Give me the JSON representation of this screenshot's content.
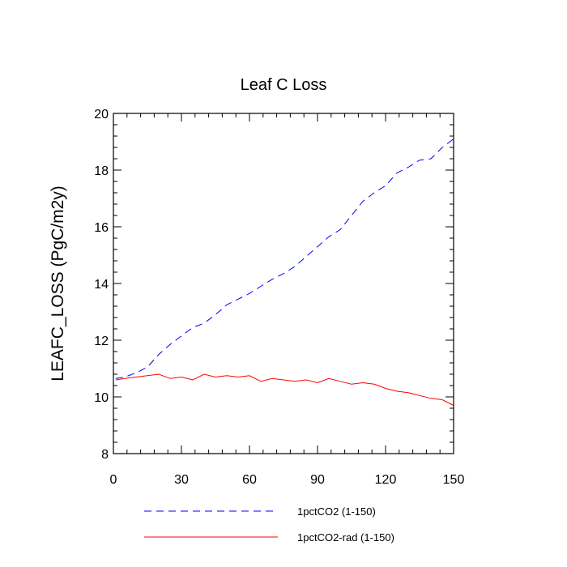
{
  "chart_data": {
    "type": "line",
    "title": "Leaf C Loss",
    "xlabel": "",
    "ylabel": "LEAFC_LOSS  (PgC/m2y)",
    "xlim": [
      0,
      150
    ],
    "ylim": [
      8,
      20
    ],
    "xticks": [
      0,
      30,
      60,
      90,
      120,
      150
    ],
    "yticks": [
      8,
      10,
      12,
      14,
      16,
      18,
      20
    ],
    "grid": false,
    "legend_position": "bottom",
    "series": [
      {
        "name": "1pctCO2 (1-150)",
        "color": "#0000ff",
        "dash": "dashed",
        "x": [
          1,
          5,
          10,
          15,
          20,
          25,
          30,
          35,
          40,
          45,
          50,
          55,
          60,
          65,
          70,
          75,
          80,
          85,
          90,
          95,
          100,
          105,
          110,
          115,
          120,
          125,
          130,
          135,
          140,
          145,
          150
        ],
        "y": [
          10.65,
          10.7,
          10.85,
          11.05,
          11.5,
          11.85,
          12.15,
          12.45,
          12.6,
          12.9,
          13.25,
          13.45,
          13.65,
          13.9,
          14.15,
          14.35,
          14.6,
          14.95,
          15.3,
          15.65,
          15.9,
          16.4,
          16.9,
          17.2,
          17.45,
          17.9,
          18.1,
          18.35,
          18.4,
          18.8,
          19.1
        ]
      },
      {
        "name": "1pctCO2-rad (1-150)",
        "color": "#ff0000",
        "dash": "solid",
        "x": [
          1,
          5,
          10,
          15,
          20,
          25,
          30,
          35,
          40,
          45,
          50,
          55,
          60,
          65,
          70,
          75,
          80,
          85,
          90,
          95,
          100,
          105,
          110,
          115,
          120,
          125,
          130,
          135,
          140,
          145,
          150
        ],
        "y": [
          10.6,
          10.65,
          10.7,
          10.75,
          10.8,
          10.65,
          10.7,
          10.6,
          10.8,
          10.7,
          10.75,
          10.7,
          10.75,
          10.55,
          10.65,
          10.6,
          10.55,
          10.6,
          10.5,
          10.65,
          10.55,
          10.45,
          10.5,
          10.45,
          10.3,
          10.2,
          10.15,
          10.05,
          9.95,
          9.9,
          9.7
        ]
      }
    ]
  }
}
